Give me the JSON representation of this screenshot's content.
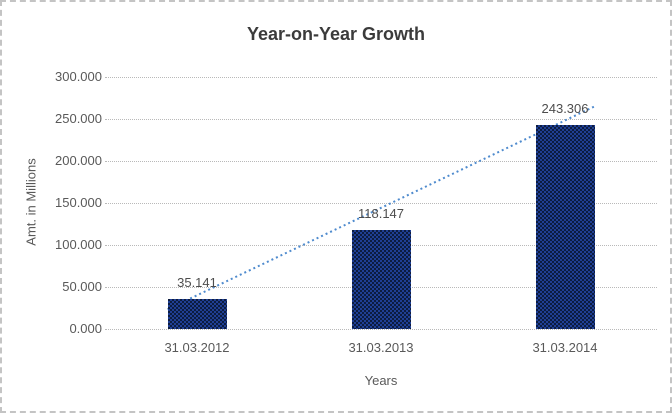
{
  "chart_data": {
    "type": "bar",
    "title": "Year-on-Year Growth",
    "xlabel": "Years",
    "ylabel": "Amt. in Millions",
    "categories": [
      "31.03.2012",
      "31.03.2013",
      "31.03.2014"
    ],
    "values": [
      35.141,
      118.147,
      243.306
    ],
    "data_labels": [
      "35.141",
      "118.147",
      "243.306"
    ],
    "ylim": [
      0,
      300
    ],
    "ytick_step": 50,
    "ytick_labels": [
      "0.000",
      "50.000",
      "100.000",
      "150.000",
      "200.000",
      "250.000",
      "300.000"
    ],
    "grid": "horizontal-dotted",
    "legend": "none",
    "trendline": {
      "type": "linear",
      "style": "dotted",
      "color": "#4f8bce"
    },
    "colors": {
      "bar_base": "#0c1c40",
      "bar_pattern": "#1f3f94",
      "gridline": "#b9b9b9",
      "title_text": "#3b3b3b",
      "axis_text": "#595959",
      "data_label_text": "#4d4d4d",
      "frame_border": "#c4c4c4",
      "background": "#ffffff"
    }
  }
}
